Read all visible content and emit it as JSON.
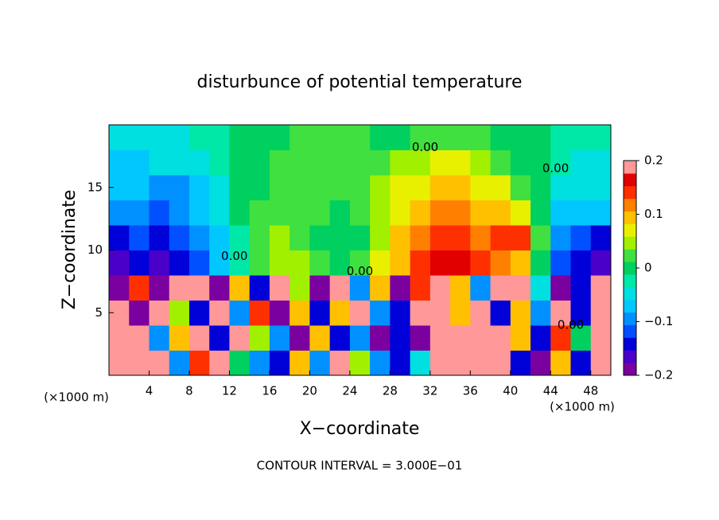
{
  "chart_data": {
    "type": "heatmap",
    "title": "disturbunce of potential temperature",
    "x_label": "X−coordinate",
    "y_label": "Z−coordinate",
    "x_unit_left": "(×1000 m)",
    "x_unit_right": "(×1000 m)",
    "footer": "CONTOUR INTERVAL = 3.000E−01",
    "x": [
      1,
      3,
      5,
      7,
      9,
      11,
      13,
      15,
      17,
      19,
      21,
      23,
      25,
      27,
      29,
      31,
      33,
      35,
      37,
      39,
      41,
      43,
      45,
      47,
      49
    ],
    "y": [
      1,
      3,
      5,
      7,
      9,
      11,
      13,
      15,
      17,
      19
    ],
    "values": [
      [
        0.2,
        0.2,
        0.2,
        -0.1,
        0.15,
        0.2,
        0.0,
        -0.1,
        -0.15,
        0.1,
        -0.1,
        0.2,
        0.05,
        -0.1,
        -0.15,
        -0.05,
        0.2,
        0.2,
        0.2,
        0.2,
        -0.15,
        -0.2,
        0.1,
        -0.15,
        0.2
      ],
      [
        0.2,
        0.2,
        -0.1,
        0.1,
        0.2,
        -0.15,
        0.2,
        0.05,
        -0.1,
        -0.2,
        0.1,
        -0.15,
        -0.1,
        -0.2,
        -0.15,
        -0.2,
        0.2,
        0.2,
        0.2,
        0.2,
        0.1,
        -0.15,
        0.15,
        0.0,
        0.2
      ],
      [
        0.2,
        -0.2,
        0.2,
        0.05,
        -0.15,
        0.2,
        -0.1,
        0.15,
        -0.2,
        0.1,
        -0.15,
        0.1,
        0.2,
        -0.1,
        -0.15,
        0.2,
        0.2,
        0.1,
        0.2,
        -0.15,
        0.1,
        -0.1,
        0.2,
        -0.15,
        0.2
      ],
      [
        -0.2,
        0.15,
        -0.2,
        0.2,
        0.2,
        -0.2,
        0.1,
        -0.15,
        0.2,
        0.05,
        -0.2,
        0.2,
        -0.1,
        0.1,
        -0.2,
        0.15,
        0.2,
        0.1,
        -0.1,
        0.2,
        0.2,
        -0.05,
        -0.2,
        -0.15,
        0.2
      ],
      [
        -0.17,
        -0.15,
        -0.16,
        -0.14,
        -0.12,
        -0.08,
        -0.02,
        0.03,
        0.05,
        0.04,
        0.02,
        0.0,
        0.02,
        0.06,
        0.1,
        0.14,
        0.16,
        0.16,
        0.13,
        0.12,
        0.1,
        0.0,
        -0.12,
        -0.15,
        -0.16
      ],
      [
        -0.13,
        -0.12,
        -0.14,
        -0.12,
        -0.1,
        -0.06,
        -0.02,
        0.02,
        0.04,
        0.03,
        0.01,
        -0.01,
        0.01,
        0.05,
        0.09,
        0.12,
        0.13,
        0.14,
        0.12,
        0.14,
        0.15,
        0.02,
        -0.1,
        -0.12,
        -0.13
      ],
      [
        -0.1,
        -0.1,
        -0.12,
        -0.1,
        -0.07,
        -0.04,
        -0.01,
        0.02,
        0.03,
        0.03,
        0.02,
        0.01,
        0.02,
        0.05,
        0.08,
        0.1,
        0.11,
        0.12,
        0.1,
        0.09,
        0.08,
        0.01,
        -0.06,
        -0.08,
        -0.07
      ],
      [
        -0.07,
        -0.08,
        -0.1,
        -0.09,
        -0.06,
        -0.04,
        -0.01,
        0.01,
        0.02,
        0.03,
        0.03,
        0.02,
        0.02,
        0.04,
        0.06,
        0.08,
        0.09,
        0.1,
        0.08,
        0.06,
        0.03,
        -0.01,
        -0.04,
        -0.05,
        -0.05
      ],
      [
        -0.06,
        -0.06,
        -0.05,
        -0.05,
        -0.04,
        -0.03,
        -0.01,
        0.0,
        0.02,
        0.02,
        0.03,
        0.02,
        0.02,
        0.02,
        0.04,
        0.05,
        0.06,
        0.06,
        0.05,
        0.03,
        0.01,
        0.0,
        -0.03,
        -0.04,
        -0.04
      ],
      [
        -0.05,
        -0.05,
        -0.04,
        -0.04,
        -0.03,
        -0.02,
        -0.01,
        0.0,
        0.01,
        0.02,
        0.02,
        0.02,
        0.02,
        0.01,
        0.01,
        0.02,
        0.02,
        0.02,
        0.02,
        0.01,
        0.0,
        -0.01,
        -0.02,
        -0.03,
        -0.03
      ]
    ],
    "xlim": [
      0,
      50
    ],
    "ylim": [
      0,
      20
    ],
    "xticks": [
      4,
      8,
      12,
      16,
      20,
      24,
      28,
      32,
      36,
      40,
      44,
      48
    ],
    "yticks": [
      5,
      10,
      15
    ],
    "zlim": [
      -0.2,
      0.2
    ],
    "zticks": [
      0.2,
      0.1,
      0,
      {
        "value": -0.1,
        "label": "−0.1"
      },
      {
        "value": -0.2,
        "label": "−0.2"
      }
    ],
    "colorscale": [
      "#7a00a0",
      "#4a00c8",
      "#0000d8",
      "#0050ff",
      "#0090ff",
      "#00c8ff",
      "#00e0e0",
      "#00e8a8",
      "#00d060",
      "#40e040",
      "#a0f000",
      "#e8f000",
      "#ffc000",
      "#ff8000",
      "#ff3000",
      "#e00000",
      "#ff9898"
    ],
    "annotations": [
      {
        "text": "0.00",
        "x": 12.5,
        "y": 9.5
      },
      {
        "text": "0.00",
        "x": 25,
        "y": 8.3
      },
      {
        "text": "0.00",
        "x": 31.5,
        "y": 18.2
      },
      {
        "text": "0.00",
        "x": 44.5,
        "y": 16.5
      },
      {
        "text": "0.00",
        "x": 46,
        "y": 4
      }
    ]
  }
}
